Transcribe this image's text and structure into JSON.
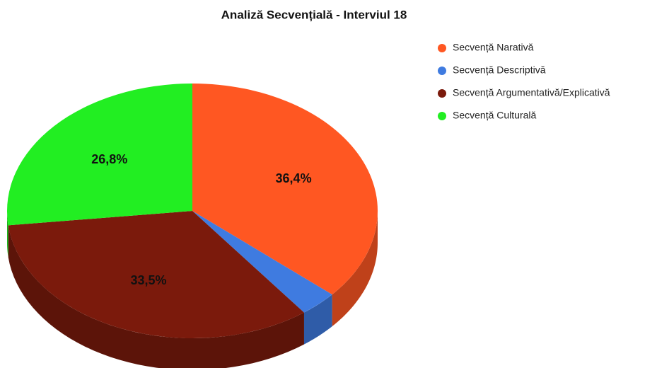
{
  "chart_data": {
    "type": "pie",
    "title": "Analiză Secvențială - Interviul 18",
    "categories": [
      "Secvență Narativă",
      "Secvență Descriptivă",
      "Secvență Argumentativă/Explicativă",
      "Secvență Culturală"
    ],
    "values": [
      36.4,
      3.3,
      33.5,
      26.8
    ],
    "value_labels": [
      "36,4%",
      null,
      "33,5%",
      "26,8%"
    ],
    "colors": [
      "#ff5722",
      "#3f7be0",
      "#7b1a0c",
      "#22ee22"
    ],
    "legend": "top-right"
  }
}
